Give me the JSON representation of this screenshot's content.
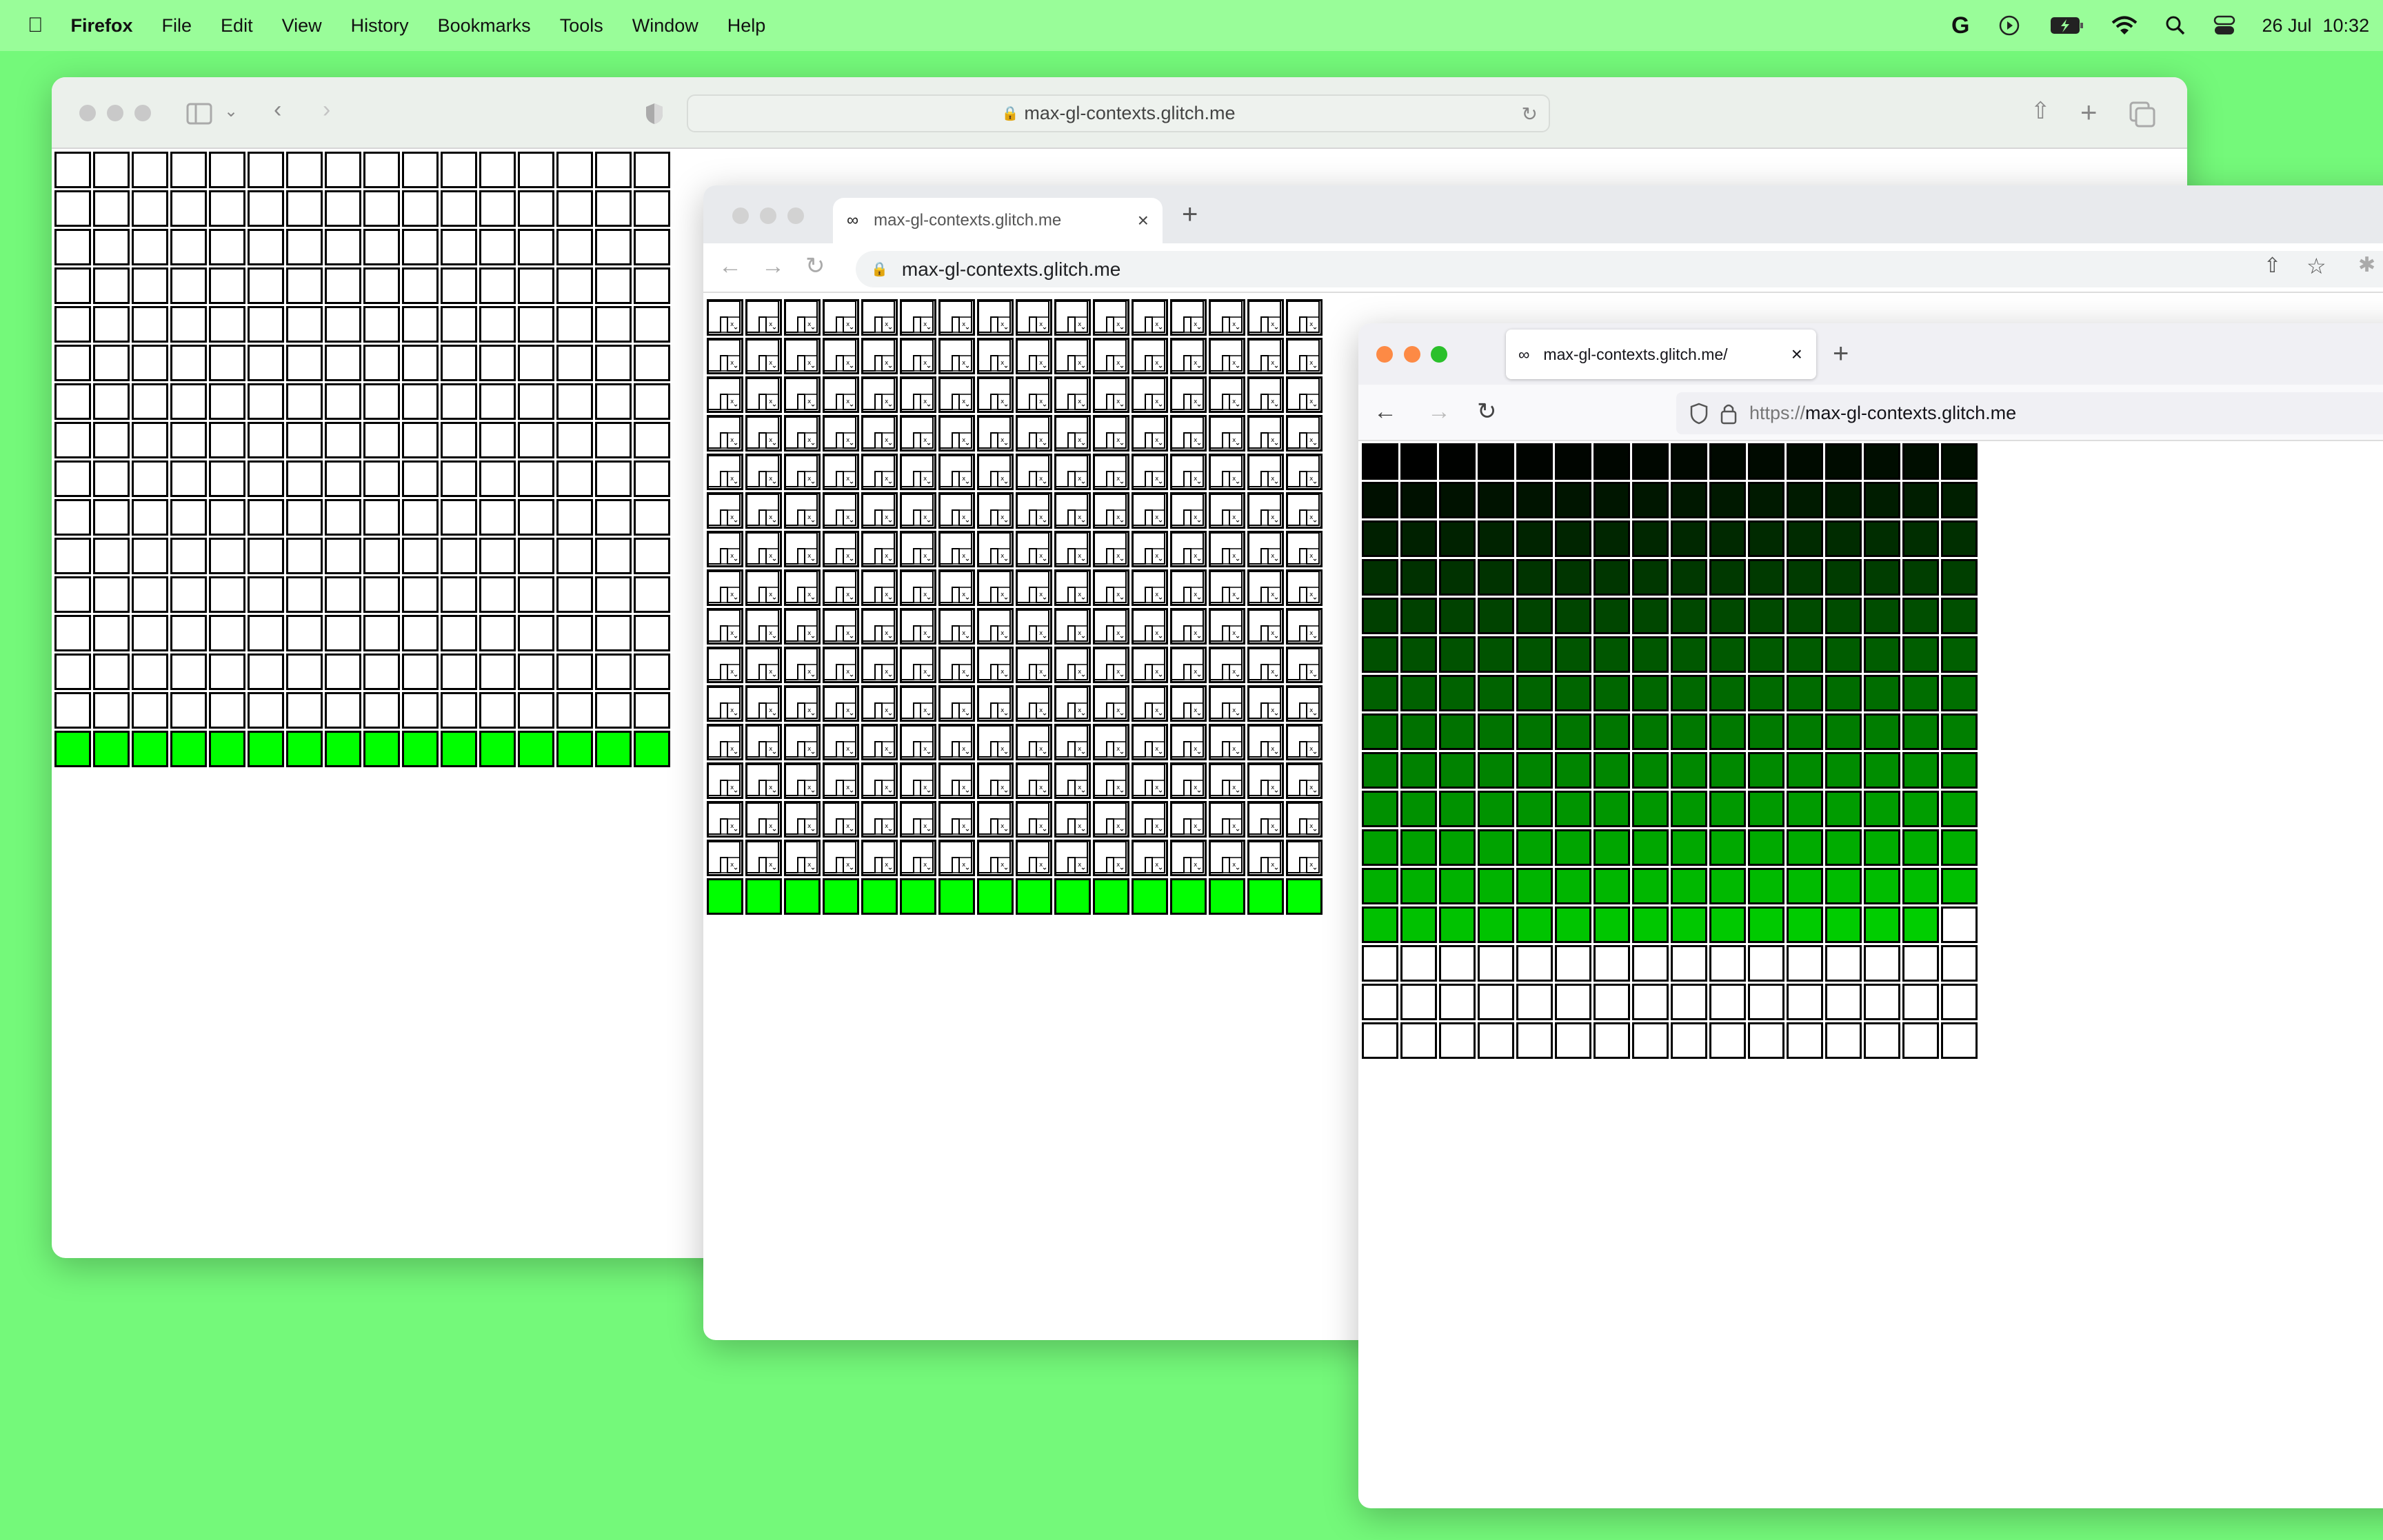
{
  "menubar": {
    "app": "Firefox",
    "items": [
      "File",
      "Edit",
      "View",
      "History",
      "Bookmarks",
      "Tools",
      "Window",
      "Help"
    ],
    "date": "26 Jul",
    "time": "10:32",
    "status_icons": [
      "google-icon",
      "play-icon",
      "battery-charging-icon",
      "wifi-icon",
      "search-icon",
      "control-center-icon"
    ]
  },
  "safari": {
    "url": "max-gl-contexts.glitch.me",
    "grid": {
      "columns": 16,
      "empty_rows": 15,
      "filled_rows": 1,
      "fill_color": "#00ff00"
    }
  },
  "chrome": {
    "tab_title": "max-gl-contexts.glitch.me",
    "url": "max-gl-contexts.glitch.me",
    "grid": {
      "columns": 16,
      "empty_rows": 15,
      "filled_rows": 1,
      "fill_color": "#00ff00",
      "empty_cell_icon": "broken-image-icon"
    }
  },
  "firefox": {
    "tab_title": "max-gl-contexts.glitch.me/",
    "url_scheme": "https://",
    "url_host": "max-gl-contexts.glitch.me",
    "grid": {
      "columns": 16,
      "rows": 16,
      "filled_cells": 207,
      "gradient_from": "#000000",
      "gradient_to": "#00ce00"
    }
  },
  "colors": {
    "desktop": "#74f97a",
    "menubar": "#99fd99"
  }
}
